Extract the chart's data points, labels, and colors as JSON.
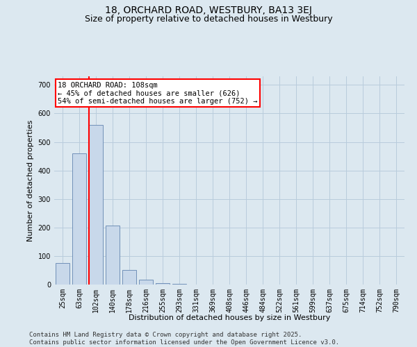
{
  "title": "18, ORCHARD ROAD, WESTBURY, BA13 3EJ",
  "subtitle": "Size of property relative to detached houses in Westbury",
  "xlabel": "Distribution of detached houses by size in Westbury",
  "ylabel": "Number of detached properties",
  "categories": [
    "25sqm",
    "63sqm",
    "102sqm",
    "140sqm",
    "178sqm",
    "216sqm",
    "255sqm",
    "293sqm",
    "331sqm",
    "369sqm",
    "408sqm",
    "446sqm",
    "484sqm",
    "522sqm",
    "561sqm",
    "599sqm",
    "637sqm",
    "675sqm",
    "714sqm",
    "752sqm",
    "790sqm"
  ],
  "values": [
    75,
    460,
    560,
    207,
    50,
    18,
    5,
    2,
    0,
    0,
    0,
    0,
    0,
    0,
    0,
    0,
    0,
    0,
    0,
    0,
    0
  ],
  "bar_color": "#c8d8ea",
  "bar_edge_color": "#7090b8",
  "redline_x": 1.58,
  "annotation_text": "18 ORCHARD ROAD: 108sqm\n← 45% of detached houses are smaller (626)\n54% of semi-detached houses are larger (752) →",
  "annotation_box_color": "white",
  "annotation_box_edge_color": "red",
  "ylim": [
    0,
    730
  ],
  "yticks": [
    0,
    100,
    200,
    300,
    400,
    500,
    600,
    700
  ],
  "grid_color": "#b8ccdc",
  "background_color": "#dce8f0",
  "footer_line1": "Contains HM Land Registry data © Crown copyright and database right 2025.",
  "footer_line2": "Contains public sector information licensed under the Open Government Licence v3.0.",
  "title_fontsize": 10,
  "subtitle_fontsize": 9,
  "axis_label_fontsize": 8,
  "tick_fontsize": 7,
  "annotation_fontsize": 7.5,
  "footer_fontsize": 6.5
}
